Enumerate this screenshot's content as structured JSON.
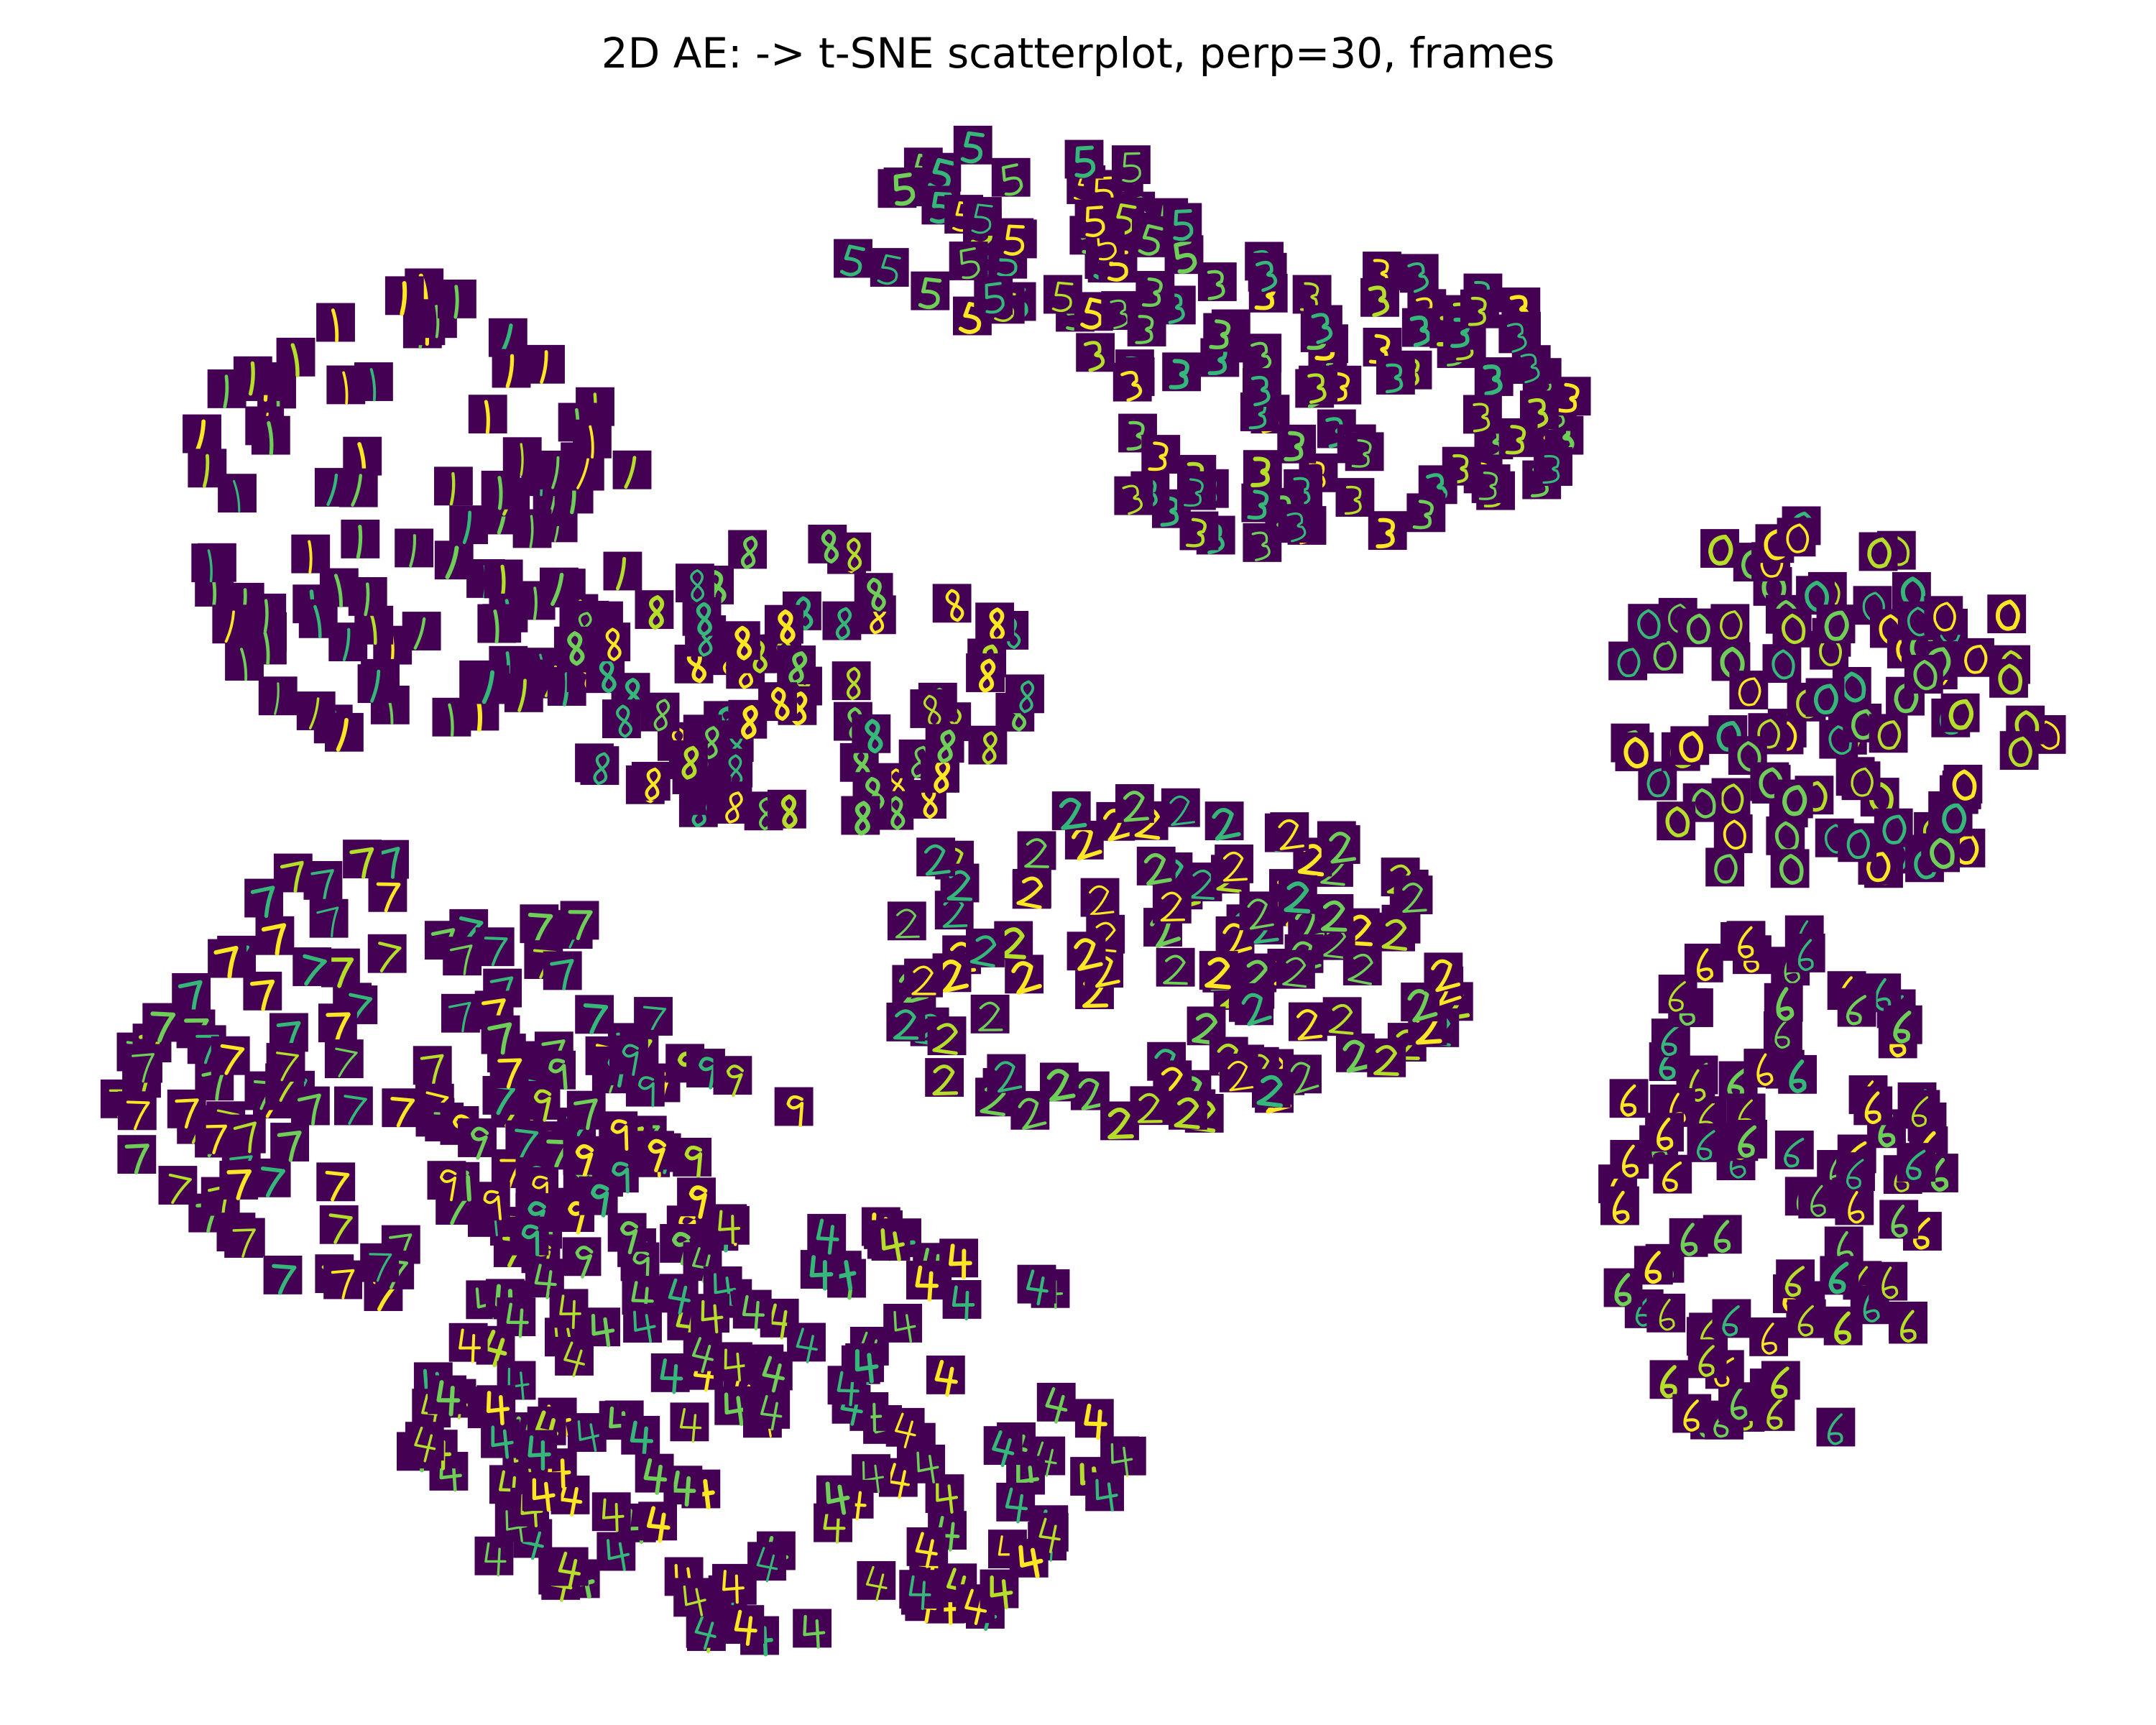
{
  "chart_data": {
    "type": "scatter",
    "title": "2D AE: -> t-SNE scatterplot, perp=30, frames"
  }
}
